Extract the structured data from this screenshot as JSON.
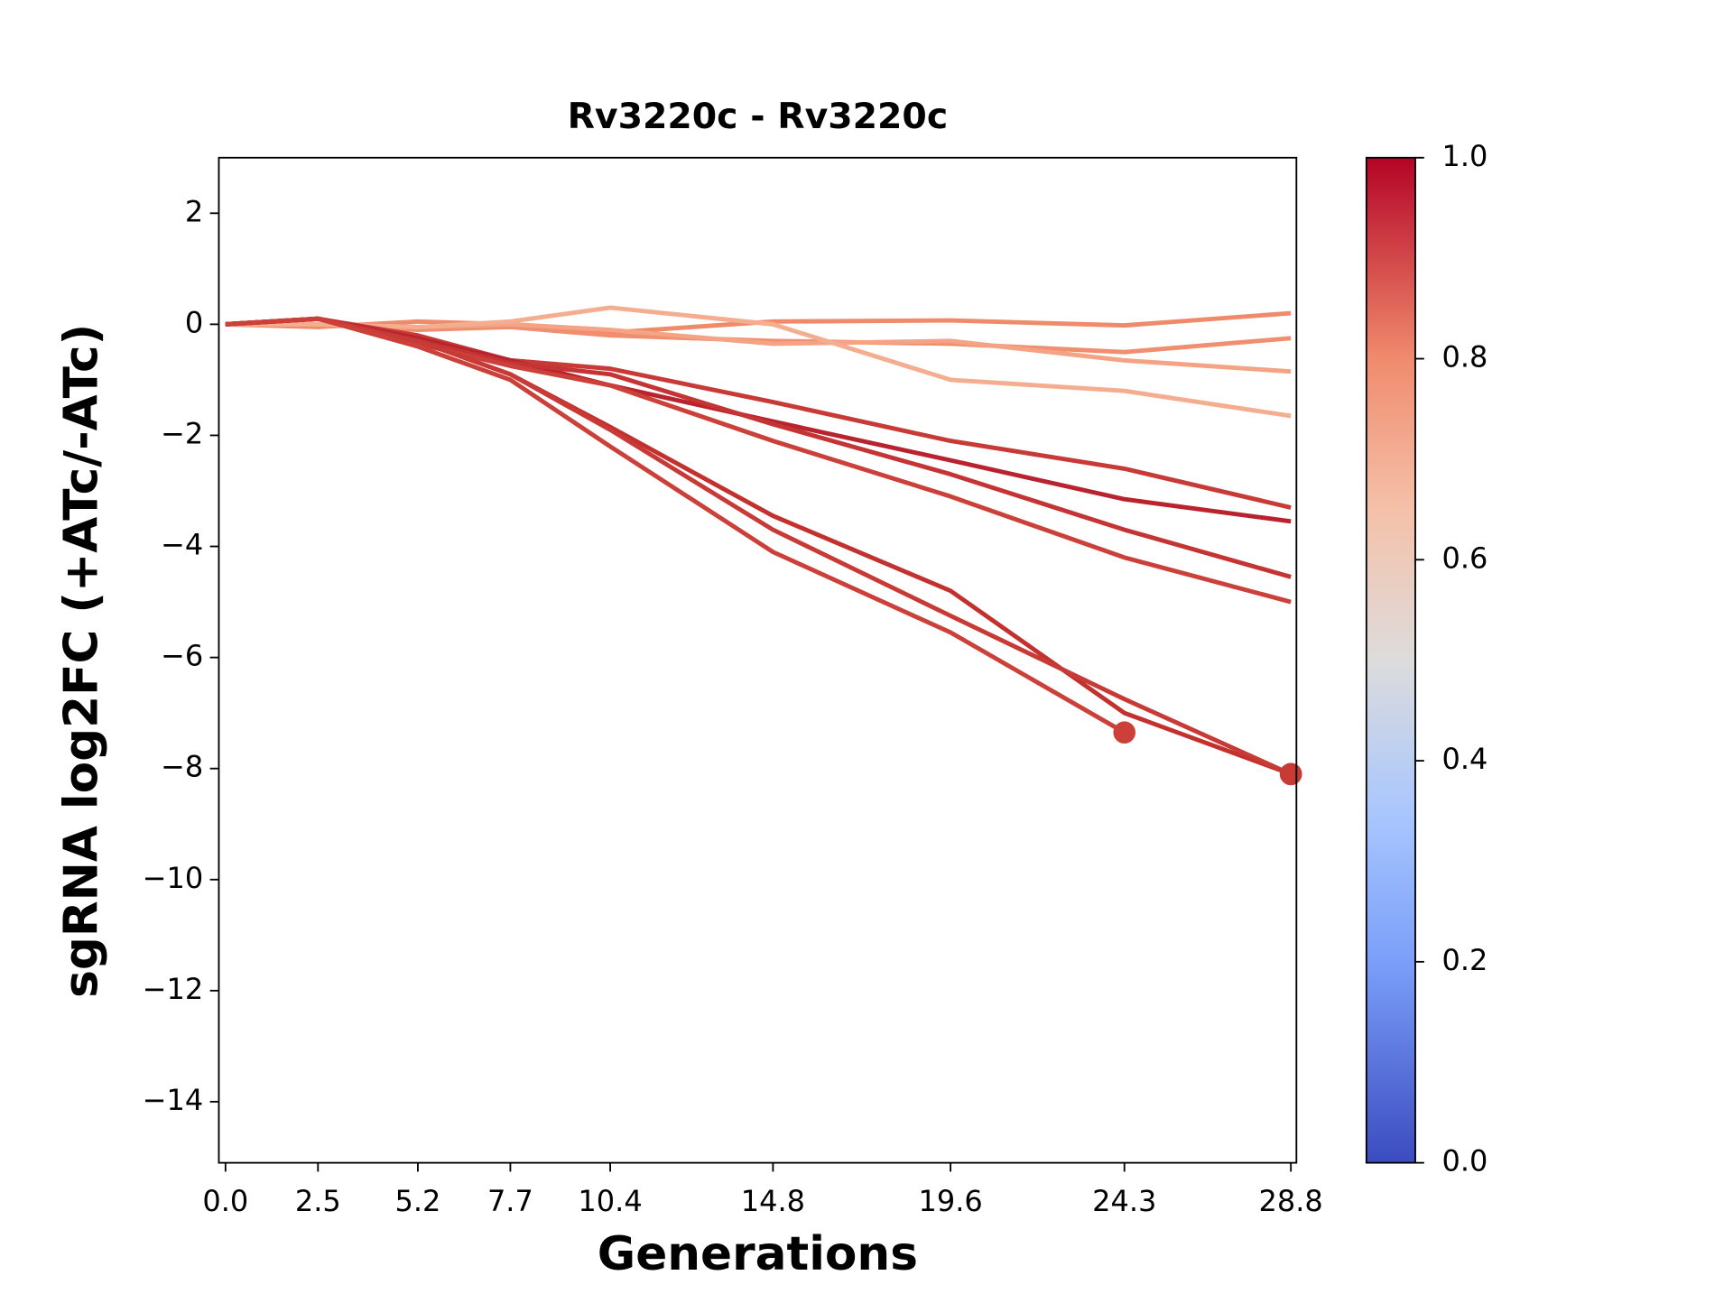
{
  "chart_data": {
    "type": "line",
    "title": "Rv3220c - Rv3220c",
    "xlabel": "Generations",
    "ylabel": "sgRNA log2FC (+ATc/-ATc)",
    "x": [
      0,
      2.5,
      5.2,
      7.7,
      10.4,
      14.8,
      19.6,
      24.3,
      28.8
    ],
    "xlim": [
      -0.18,
      28.95
    ],
    "xticks": [
      {
        "value": 0,
        "label": "0.0"
      },
      2.5,
      5.2,
      7.7,
      10.4,
      14.8,
      19.6,
      24.3,
      28.8
    ],
    "ylim": [
      -15.1,
      3
    ],
    "yticks": [
      {
        "value": -14,
        "label": "−14"
      },
      {
        "value": -12,
        "label": "−12"
      },
      {
        "value": -10,
        "label": "−10"
      },
      {
        "value": -8,
        "label": "−8"
      },
      {
        "value": -6,
        "label": "−6"
      },
      {
        "value": -4,
        "label": "−4"
      },
      {
        "value": -2,
        "label": "−2"
      },
      0,
      2
    ],
    "series": [
      {
        "color": "#ef8a6a",
        "values": [
          0,
          -0.05,
          0.05,
          0,
          -0.15,
          0.05,
          0.07,
          -0.02,
          0.2
        ]
      },
      {
        "color": "#f08f70",
        "values": [
          0,
          0,
          -0.1,
          -0.05,
          -0.2,
          -0.3,
          -0.35,
          -0.5,
          -0.25
        ]
      },
      {
        "color": "#f4a385",
        "values": [
          0,
          0,
          -0.05,
          0,
          -0.1,
          -0.35,
          -0.3,
          -0.65,
          -0.85
        ]
      },
      {
        "color": "#f5ad8f",
        "values": [
          0,
          0,
          -0.05,
          0.05,
          0.3,
          0,
          -1.0,
          -1.2,
          -1.65
        ]
      },
      {
        "color": "#c83a36",
        "values": [
          0,
          0.1,
          -0.2,
          -0.65,
          -0.8,
          -1.4,
          -2.1,
          -2.6,
          -3.3
        ]
      },
      {
        "color": "#b8232e",
        "values": [
          0,
          0.1,
          -0.25,
          -0.65,
          -1.1,
          -1.75,
          -2.45,
          -3.15,
          -3.55
        ]
      },
      {
        "color": "#c53434",
        "values": [
          0,
          0.1,
          -0.3,
          -0.7,
          -0.9,
          -1.8,
          -2.7,
          -3.7,
          -4.55
        ]
      },
      {
        "color": "#cc403a",
        "values": [
          0,
          0.1,
          -0.35,
          -0.75,
          -1.1,
          -2.1,
          -3.1,
          -4.2,
          -5.0
        ]
      },
      {
        "color": "#c3312f",
        "values": [
          0,
          0.1,
          -0.3,
          -0.9,
          -1.85,
          -3.45,
          -4.8,
          -7.0,
          -8.1
        ],
        "end_marker": true
      },
      {
        "color": "#c83a36",
        "values": [
          0,
          0.1,
          -0.3,
          -0.9,
          -1.9,
          -3.7,
          -5.25,
          -6.75,
          -8.1
        ],
        "end_marker": true
      },
      {
        "color": "#cc403a",
        "values": [
          0,
          0.1,
          -0.4,
          -1.0,
          -2.2,
          -4.1,
          -5.55,
          -7.35,
          null
        ],
        "end_marker": true
      }
    ],
    "colorbar": {
      "lim": [
        0,
        1
      ],
      "ticks": [
        {
          "value": 0,
          "label": "0.0"
        },
        {
          "value": 0.2,
          "label": "0.2"
        },
        {
          "value": 0.4,
          "label": "0.4"
        },
        {
          "value": 0.6,
          "label": "0.6"
        },
        {
          "value": 0.8,
          "label": "0.8"
        },
        {
          "value": 1,
          "label": "1.0"
        }
      ]
    }
  }
}
